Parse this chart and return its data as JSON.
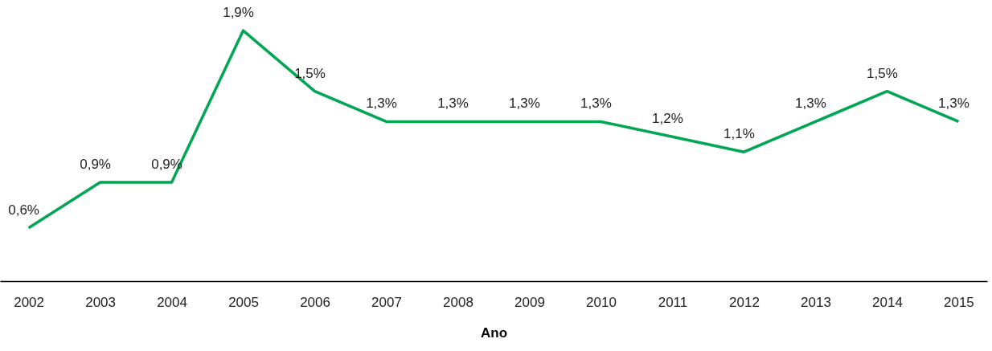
{
  "chart_data": {
    "type": "line",
    "xlabel": "Ano",
    "categories": [
      "2002",
      "2003",
      "2004",
      "2005",
      "2006",
      "2007",
      "2008",
      "2009",
      "2010",
      "2011",
      "2012",
      "2013",
      "2014",
      "2015"
    ],
    "series": [
      {
        "color": "#00a651",
        "values": [
          0.6,
          0.9,
          0.9,
          1.9,
          1.5,
          1.3,
          1.3,
          1.3,
          1.3,
          1.2,
          1.1,
          1.3,
          1.5,
          1.3
        ],
        "value_labels": [
          "0,6%",
          "0,9%",
          "0,9%",
          "1,9%",
          "1,5%",
          "1,3%",
          "1,3%",
          "1,3%",
          "1,3%",
          "1,2%",
          "1,1%",
          "1,3%",
          "1,5%",
          "1,3%"
        ]
      }
    ],
    "grid": false,
    "marker": "none",
    "line_style": "solid"
  }
}
